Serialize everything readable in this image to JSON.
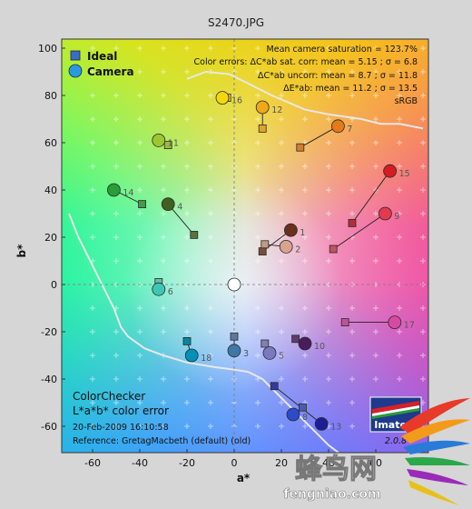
{
  "title": "S2470.JPG",
  "chart_data": {
    "type": "scatter",
    "xlabel": "a*",
    "ylabel": "b*",
    "xlim": [
      -70,
      80
    ],
    "ylim": [
      -70,
      105
    ],
    "x_ticks": [
      -60,
      -40,
      -20,
      0,
      20,
      40,
      60
    ],
    "y_ticks": [
      -60,
      -40,
      -20,
      0,
      20,
      40,
      60,
      80,
      100
    ],
    "legend": {
      "placement": "top-left",
      "entries": [
        "Ideal",
        "Camera"
      ]
    },
    "annotations": [
      "Mean camera saturation = 123.7%",
      "Color errors: ΔC*ab sat. corr:  mean = 5.15 ;  σ = 6.8",
      "ΔC*ab uncorr:  mean = 8.7 ;  σ = 11.8",
      "ΔE*ab:  mean = 11.2 ;  σ = 13.5",
      "sRGB"
    ],
    "bottom_left": {
      "line1": "ColorChecker",
      "line2": "L*a*b* color error",
      "date": "20-Feb-2009 16:10:58",
      "reference": "Reference: GretagMacbeth (default) (old)"
    },
    "series": [
      {
        "name": "Ideal",
        "points": [
          {
            "id": 1,
            "a": 12,
            "b": 14,
            "color": "#7a4e3a"
          },
          {
            "id": 2,
            "a": 13,
            "b": 17,
            "color": "#c49a88"
          },
          {
            "id": 3,
            "a": 0,
            "b": -22,
            "color": "#5d7a9c"
          },
          {
            "id": 4,
            "a": -17,
            "b": 21,
            "color": "#5a7040"
          },
          {
            "id": 5,
            "a": 13,
            "b": -25,
            "color": "#8280b0"
          },
          {
            "id": 6,
            "a": -32,
            "b": 1,
            "color": "#63c0ac"
          },
          {
            "id": 7,
            "a": 28,
            "b": 58,
            "color": "#d47e2c"
          },
          {
            "id": 8,
            "a": 29,
            "b": -52,
            "color": "#4a5cab"
          },
          {
            "id": 9,
            "a": 42,
            "b": 15,
            "color": "#c05261"
          },
          {
            "id": 10,
            "a": 26,
            "b": -23,
            "color": "#5e3c6c"
          },
          {
            "id": 11,
            "a": -28,
            "b": 59,
            "color": "#9dbb3c"
          },
          {
            "id": 12,
            "a": 12,
            "b": 66,
            "color": "#e0a32e"
          },
          {
            "id": 13,
            "a": 17,
            "b": -43,
            "color": "#35399a"
          },
          {
            "id": 14,
            "a": -39,
            "b": 34,
            "color": "#469948"
          },
          {
            "id": 15,
            "a": 50,
            "b": 26,
            "color": "#b03035"
          },
          {
            "id": 16,
            "a": -3,
            "b": 79,
            "color": "#e8c81f"
          },
          {
            "id": 17,
            "a": 47,
            "b": -16,
            "color": "#bb5596"
          },
          {
            "id": 18,
            "a": -20,
            "b": -24,
            "color": "#0885a1"
          },
          {
            "id": 19,
            "a": 0,
            "b": 0,
            "color": "#f3f3f2"
          }
        ]
      },
      {
        "name": "Camera",
        "points": [
          {
            "id": 1,
            "a": 24,
            "b": 23,
            "color": "#6b2f1e"
          },
          {
            "id": 2,
            "a": 22,
            "b": 16,
            "color": "#d9a38e"
          },
          {
            "id": 3,
            "a": 0,
            "b": -28,
            "color": "#3e78a8"
          },
          {
            "id": 4,
            "a": -28,
            "b": 34,
            "color": "#3f6020"
          },
          {
            "id": 5,
            "a": 15,
            "b": -29,
            "color": "#7c78c0"
          },
          {
            "id": 6,
            "a": -32,
            "b": -2,
            "color": "#3cc8b4"
          },
          {
            "id": 7,
            "a": 44,
            "b": 67,
            "color": "#e47a18"
          },
          {
            "id": 8,
            "a": 25,
            "b": -55,
            "color": "#2d4ac8"
          },
          {
            "id": 9,
            "a": 64,
            "b": 30,
            "color": "#e43a50"
          },
          {
            "id": 10,
            "a": 30,
            "b": -25,
            "color": "#4a1c5a"
          },
          {
            "id": 11,
            "a": -32,
            "b": 61,
            "color": "#9cc82e"
          },
          {
            "id": 12,
            "a": 12,
            "b": 75,
            "color": "#f0a818"
          },
          {
            "id": 13,
            "a": 37,
            "b": -59,
            "color": "#1e1e94"
          },
          {
            "id": 14,
            "a": -51,
            "b": 40,
            "color": "#2c9c38"
          },
          {
            "id": 15,
            "a": 66,
            "b": 48,
            "color": "#d41c24"
          },
          {
            "id": 16,
            "a": -5,
            "b": 79,
            "color": "#f4d80a"
          },
          {
            "id": 17,
            "a": 68,
            "b": -16,
            "color": "#d84aa2"
          },
          {
            "id": 18,
            "a": -18,
            "b": -30,
            "color": "#0090b8"
          },
          {
            "id": 19,
            "a": 0,
            "b": 0,
            "color": "#ffffff"
          }
        ]
      }
    ]
  },
  "logo": {
    "brand": "Imatest",
    "version": "2.0.8"
  },
  "watermark": {
    "chinese": "蜂鸟网",
    "domain": "fengniao.com"
  }
}
